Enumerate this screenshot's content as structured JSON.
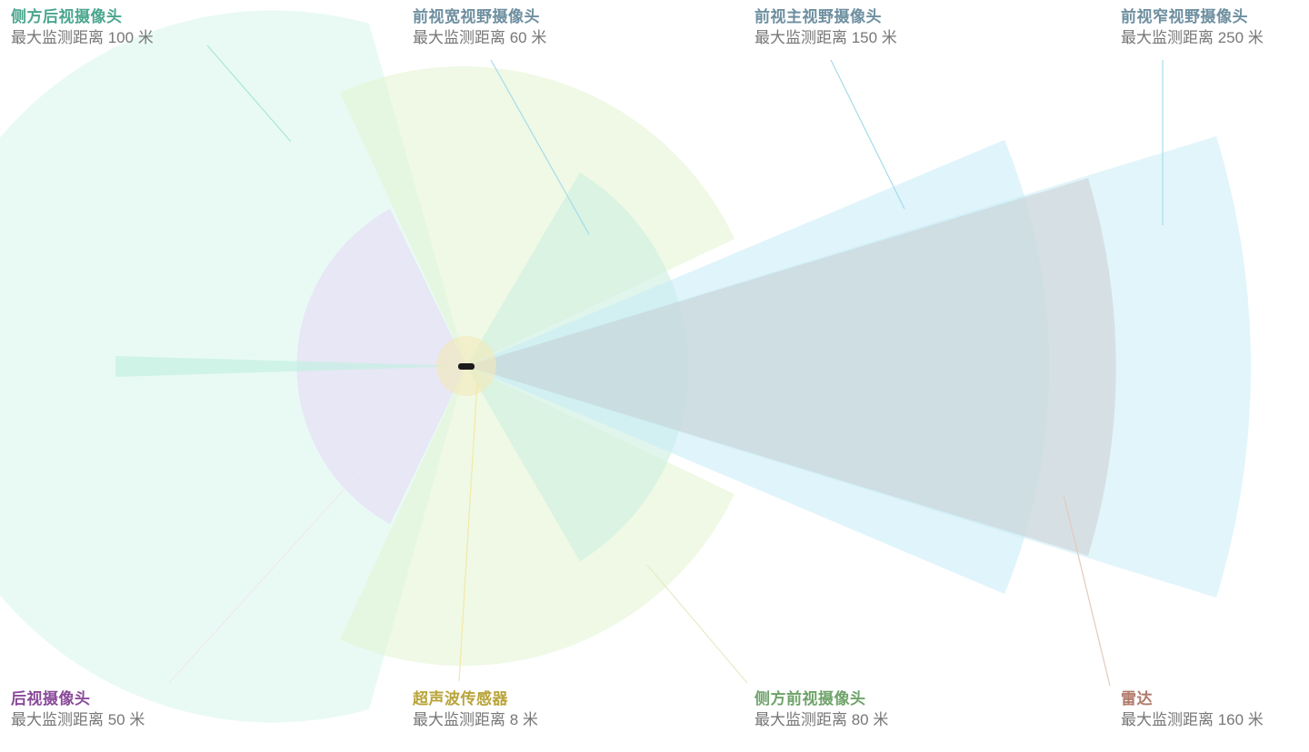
{
  "sensors": {
    "rear_side": {
      "name": "侧方后视摄像头",
      "range": "最大监测距离 100 米",
      "color": "#4aa68e",
      "fill": "#d4f5ec"
    },
    "front_wide": {
      "name": "前视宽视野摄像头",
      "range": "最大监测距离 60 米",
      "color": "#6e8fa0",
      "fill": "#e2f4cf"
    },
    "front_main": {
      "name": "前视主视野摄像头",
      "range": "最大监测距离 150 米",
      "color": "#6e8fa0",
      "fill": "#c6ebf8"
    },
    "front_narrow": {
      "name": "前视窄视野摄像头",
      "range": "最大监测距离 250 米",
      "color": "#6e8fa0",
      "fill": "#c6ebf8"
    },
    "rear": {
      "name": "后视摄像头",
      "range": "最大监测距离 50 米",
      "color": "#8a4a9a",
      "fill": "#e6e3f4"
    },
    "ultrasonic": {
      "name": "超声波传感器",
      "range": "最大监测距离 8 米",
      "color": "#b8a43a",
      "fill": "#f3e9b8"
    },
    "front_side": {
      "name": "侧方前视摄像头",
      "range": "最大监测距离 80 米",
      "color": "#6fa36a",
      "fill": "#ccefe0"
    },
    "radar": {
      "name": "雷达",
      "range": "最大监测距离 160 米",
      "color": "#b07a6a",
      "fill": "#cfcfcf"
    }
  }
}
